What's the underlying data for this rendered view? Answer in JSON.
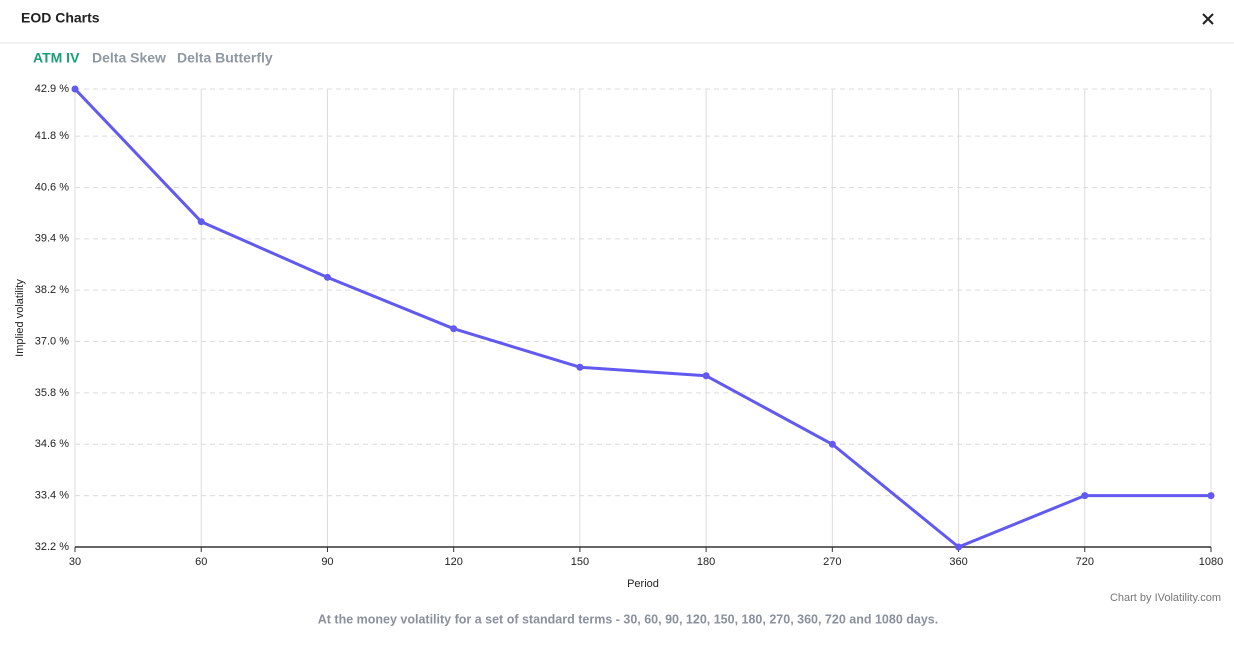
{
  "header": {
    "title": "EOD Charts"
  },
  "tabs": [
    {
      "label": "ATM IV",
      "active": true
    },
    {
      "label": "Delta Skew",
      "active": false
    },
    {
      "label": "Delta Butterfly",
      "active": false
    }
  ],
  "chart_data": {
    "type": "line",
    "x_label": "Period",
    "y_label": "Implied volatility",
    "categories": [
      "30",
      "60",
      "90",
      "120",
      "150",
      "180",
      "270",
      "360",
      "720",
      "1080"
    ],
    "series": [
      {
        "name": "ATM IV",
        "color": "#6159f0",
        "values": [
          42.9,
          39.8,
          38.5,
          37.3,
          36.4,
          36.2,
          34.6,
          32.2,
          33.4,
          33.4
        ]
      }
    ],
    "ylim": [
      32.2,
      42.9
    ],
    "yticks": [
      {
        "value": 32.2,
        "label": "32.2 %"
      },
      {
        "value": 33.4,
        "label": "33.4 %"
      },
      {
        "value": 34.6,
        "label": "34.6 %"
      },
      {
        "value": 35.8,
        "label": "35.8 %"
      },
      {
        "value": 37.0,
        "label": "37.0 %"
      },
      {
        "value": 38.2,
        "label": "38.2 %"
      },
      {
        "value": 39.4,
        "label": "39.4 %"
      },
      {
        "value": 40.6,
        "label": "40.6 %"
      },
      {
        "value": 41.8,
        "label": "41.8 %"
      },
      {
        "value": 42.9,
        "label": "42.9 %"
      }
    ],
    "grid": true
  },
  "credit": "Chart by IVolatility.com",
  "caption": "At the money volatility for a set of standard terms - 30, 60, 90, 120, 150, 180, 270, 360, 720 and 1080 days."
}
